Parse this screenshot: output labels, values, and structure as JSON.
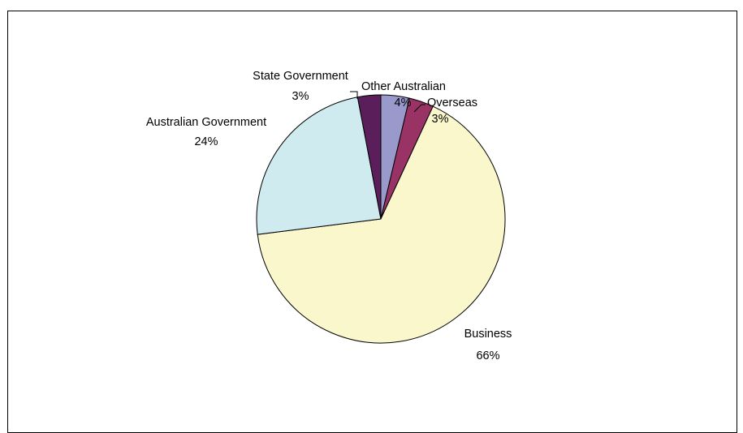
{
  "chart_data": {
    "type": "pie",
    "title": "",
    "start_angle_deg": 0,
    "direction": "clockwise",
    "slices": [
      {
        "label": "Other Australian",
        "percent_label": "4%",
        "value": 3.7,
        "color": "#9999CC"
      },
      {
        "label": "Overseas",
        "percent_label": "3%",
        "value": 3.2,
        "color": "#993366"
      },
      {
        "label": "Business",
        "percent_label": "66%",
        "value": 66.1,
        "color": "#FAF7CC"
      },
      {
        "label": "Australian Government",
        "percent_label": "24%",
        "value": 24.0,
        "color": "#D0EBF0"
      },
      {
        "label": "State Government",
        "percent_label": "3%",
        "value": 3.0,
        "color": "#5A1E5A"
      }
    ]
  }
}
